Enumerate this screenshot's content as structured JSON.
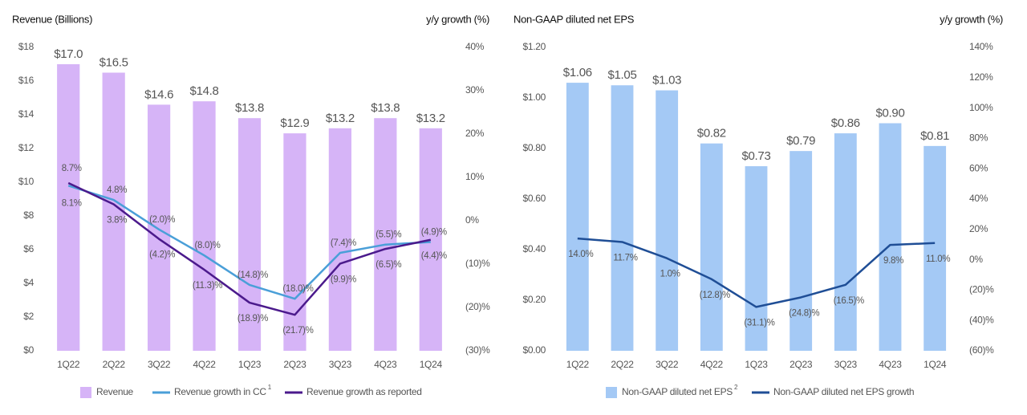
{
  "chart_data": [
    {
      "type": "bar",
      "title": "Revenue (Billions)",
      "y2_title": "y/y growth (%)",
      "categories": [
        "1Q22",
        "2Q22",
        "3Q22",
        "4Q22",
        "1Q23",
        "2Q23",
        "3Q23",
        "4Q23",
        "1Q24"
      ],
      "series": [
        {
          "name": "Revenue",
          "color": "#d6b4f7",
          "values": [
            17.0,
            16.5,
            14.6,
            14.8,
            13.8,
            12.9,
            13.2,
            13.8,
            13.2
          ],
          "value_labels": [
            "$17.0",
            "$16.5",
            "$14.6",
            "$14.8",
            "$13.8",
            "$12.9",
            "$13.2",
            "$13.8",
            "$13.2"
          ]
        },
        {
          "name": "Revenue growth in CC",
          "note": "1",
          "type": "line",
          "axis": "y2",
          "color": "#4a9fd8",
          "values": [
            8.1,
            4.8,
            -2.0,
            -8.0,
            -14.8,
            -18.0,
            -7.4,
            -5.5,
            -4.9
          ],
          "value_labels": [
            "8.1%",
            "4.8%",
            "(2.0)%",
            "(8.0)%",
            "(14.8)%",
            "(18.0)%",
            "(7.4)%",
            "(5.5)%",
            "(4.9)%"
          ]
        },
        {
          "name": "Revenue growth as reported",
          "type": "line",
          "axis": "y2",
          "color": "#4b1a8c",
          "values": [
            8.7,
            3.8,
            -4.2,
            -11.3,
            -18.9,
            -21.7,
            -9.9,
            -6.5,
            -4.4
          ],
          "value_labels": [
            "8.7%",
            "3.8%",
            "(4.2)%",
            "(11.3)%",
            "(18.9)%",
            "(21.7)%",
            "(9.9)%",
            "(6.5)%",
            "(4.4)%"
          ]
        }
      ],
      "ylim": [
        0,
        18
      ],
      "yticks": [
        {
          "value": 0,
          "label": "$0"
        },
        {
          "value": 2,
          "label": "$2"
        },
        {
          "value": 4,
          "label": "$4"
        },
        {
          "value": 6,
          "label": "$6"
        },
        {
          "value": 8,
          "label": "$8"
        },
        {
          "value": 10,
          "label": "$10"
        },
        {
          "value": 12,
          "label": "$12"
        },
        {
          "value": 14,
          "label": "$14"
        },
        {
          "value": 16,
          "label": "$16"
        },
        {
          "value": 18,
          "label": "$18"
        }
      ],
      "y2lim": [
        -30,
        40
      ],
      "y2ticks": [
        {
          "value": -30,
          "label": "(30)%"
        },
        {
          "value": -20,
          "label": "(20)%"
        },
        {
          "value": -10,
          "label": "(10)%"
        },
        {
          "value": 0,
          "label": "0%"
        },
        {
          "value": 10,
          "label": "10%"
        },
        {
          "value": 20,
          "label": "20%"
        },
        {
          "value": 30,
          "label": "30%"
        },
        {
          "value": 40,
          "label": "40%"
        }
      ],
      "grid": false
    },
    {
      "type": "bar",
      "title": "Non-GAAP diluted net EPS",
      "y2_title": "y/y growth (%)",
      "categories": [
        "1Q22",
        "2Q22",
        "3Q22",
        "4Q22",
        "1Q23",
        "2Q23",
        "3Q23",
        "4Q23",
        "1Q24"
      ],
      "series": [
        {
          "name": "Non-GAAP diluted net EPS",
          "note": "2",
          "color": "#a4c9f5",
          "values": [
            1.06,
            1.05,
            1.03,
            0.82,
            0.73,
            0.79,
            0.86,
            0.9,
            0.81
          ],
          "value_labels": [
            "$1.06",
            "$1.05",
            "$1.03",
            "$0.82",
            "$0.73",
            "$0.79",
            "$0.86",
            "$0.90",
            "$0.81"
          ]
        },
        {
          "name": "Non-GAAP diluted net EPS growth",
          "type": "line",
          "axis": "y2",
          "color": "#1f4e96",
          "values": [
            14.0,
            11.7,
            1.0,
            -12.8,
            -31.1,
            -24.8,
            -16.5,
            9.8,
            11.0
          ],
          "value_labels": [
            "14.0%",
            "11.7%",
            "1.0%",
            "(12.8)%",
            "(31.1)%",
            "(24.8)%",
            "(16.5)%",
            "9.8%",
            "11.0%"
          ]
        }
      ],
      "ylim": [
        0,
        1.2
      ],
      "yticks": [
        {
          "value": 0,
          "label": "$0.00"
        },
        {
          "value": 0.2,
          "label": "$0.20"
        },
        {
          "value": 0.4,
          "label": "$0.40"
        },
        {
          "value": 0.6,
          "label": "$0.60"
        },
        {
          "value": 0.8,
          "label": "$0.80"
        },
        {
          "value": 1.0,
          "label": "$1.00"
        },
        {
          "value": 1.2,
          "label": "$1.20"
        }
      ],
      "y2lim": [
        -60,
        140
      ],
      "y2ticks": [
        {
          "value": -60,
          "label": "(60)%"
        },
        {
          "value": -40,
          "label": "(40)%"
        },
        {
          "value": -20,
          "label": "(20)%"
        },
        {
          "value": 0,
          "label": "0%"
        },
        {
          "value": 20,
          "label": "20%"
        },
        {
          "value": 40,
          "label": "40%"
        },
        {
          "value": 60,
          "label": "60%"
        },
        {
          "value": 80,
          "label": "80%"
        },
        {
          "value": 100,
          "label": "100%"
        },
        {
          "value": 120,
          "label": "120%"
        },
        {
          "value": 140,
          "label": "140%"
        }
      ],
      "grid": false
    }
  ]
}
